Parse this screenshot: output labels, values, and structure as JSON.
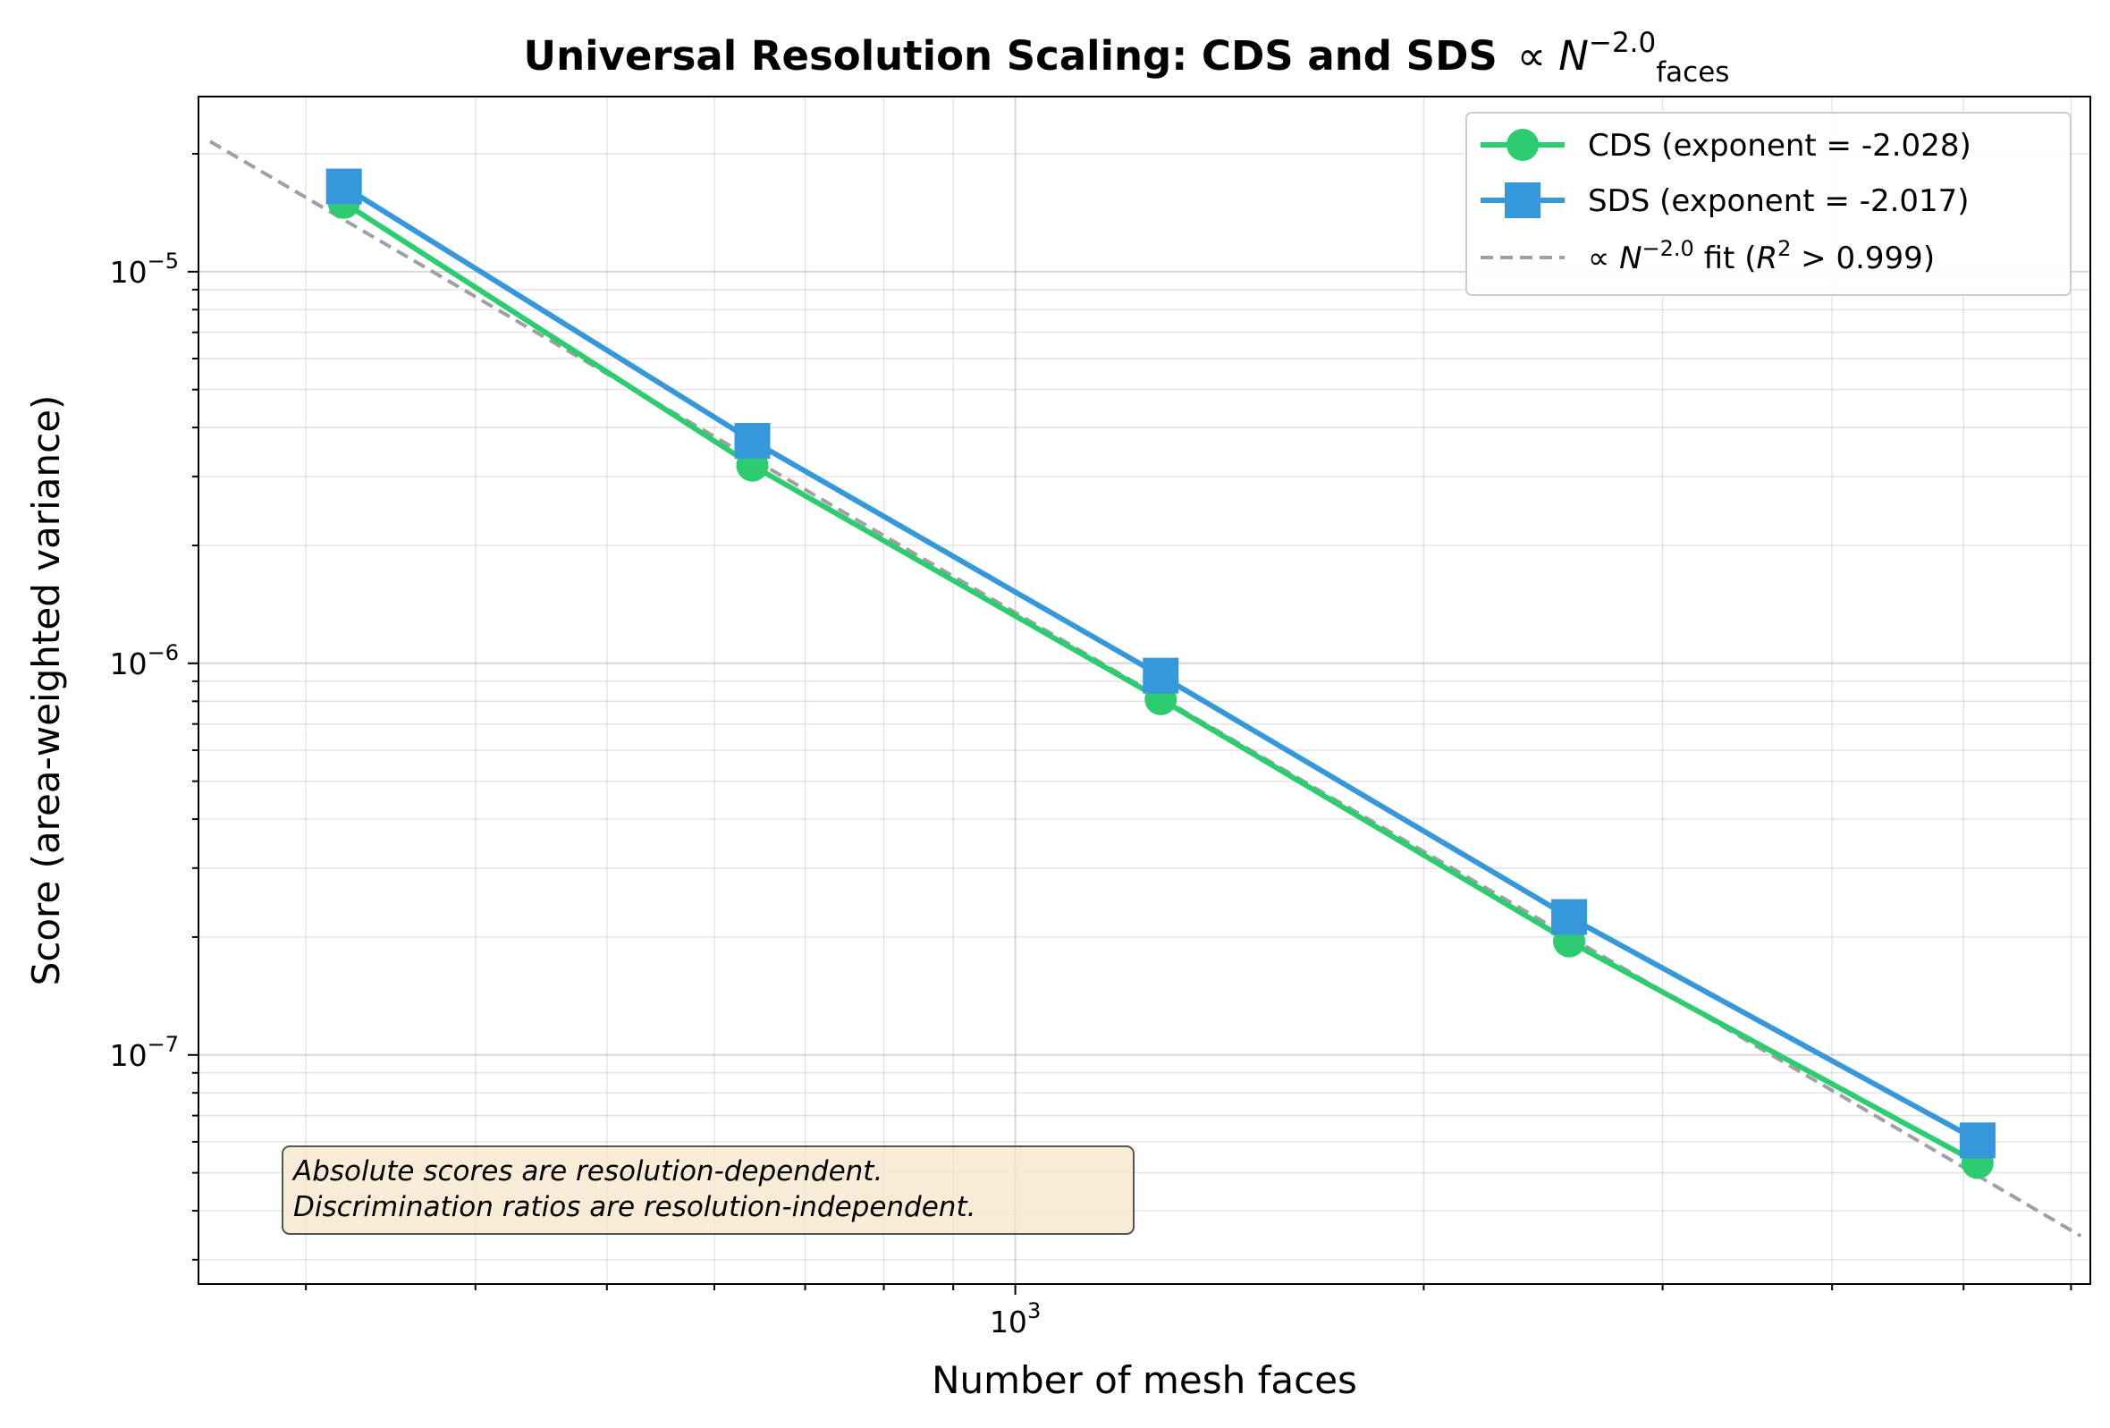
{
  "chart_data": {
    "type": "line",
    "title": "Universal Resolution Scaling: CDS and SDS",
    "title_math": {
      "prefix": "∝ ",
      "base": "N",
      "superscript": "−2.0",
      "subscript": "faces"
    },
    "xlabel": "Number of mesh faces",
    "ylabel": "Score (area-weighted variance)",
    "x_scale": "log",
    "y_scale": "log",
    "xlim": [
      250,
      6200
    ],
    "ylim": [
      2.6e-08,
      2.8e-05
    ],
    "x_major_ticks": [
      {
        "value": 1000,
        "base": "10",
        "exp": "3"
      }
    ],
    "y_major_ticks": [
      {
        "value": 1e-07,
        "base": "10",
        "exp": "−7"
      },
      {
        "value": 1e-06,
        "base": "10",
        "exp": "−6"
      },
      {
        "value": 1e-05,
        "base": "10",
        "exp": "−5"
      }
    ],
    "grid": true,
    "legend_position": "upper-right",
    "series": [
      {
        "name": "CDS (exponent = -2.028)",
        "color": "#2ecc71",
        "marker": "circle",
        "x": [
          320,
          640,
          1280,
          2560,
          5120
        ],
        "y": [
          1.5e-05,
          3.2e-06,
          8.1e-07,
          1.95e-07,
          5.3e-08
        ]
      },
      {
        "name": "SDS (exponent = -2.017)",
        "color": "#3498db",
        "marker": "square",
        "x": [
          320,
          640,
          1280,
          2560,
          5120
        ],
        "y": [
          1.65e-05,
          3.7e-06,
          9.3e-07,
          2.25e-07,
          6.05e-08
        ]
      }
    ],
    "fit_line": {
      "legend_prefix": "∝ ",
      "legend_base": "N",
      "legend_sup": "−2.0",
      "legend_mid": " fit (",
      "legend_r": "R",
      "legend_r_sup": "2",
      "legend_suffix": " > 0.999)",
      "color": "#a0a0a0",
      "style": "dashed",
      "x": [
        255,
        6100
      ],
      "y": [
        2.15e-05,
        3.45e-08
      ]
    },
    "annotation": {
      "lines": [
        "Absolute scores are resolution-dependent.",
        "Discrimination ratios are resolution-independent."
      ],
      "position": "lower-left"
    }
  }
}
